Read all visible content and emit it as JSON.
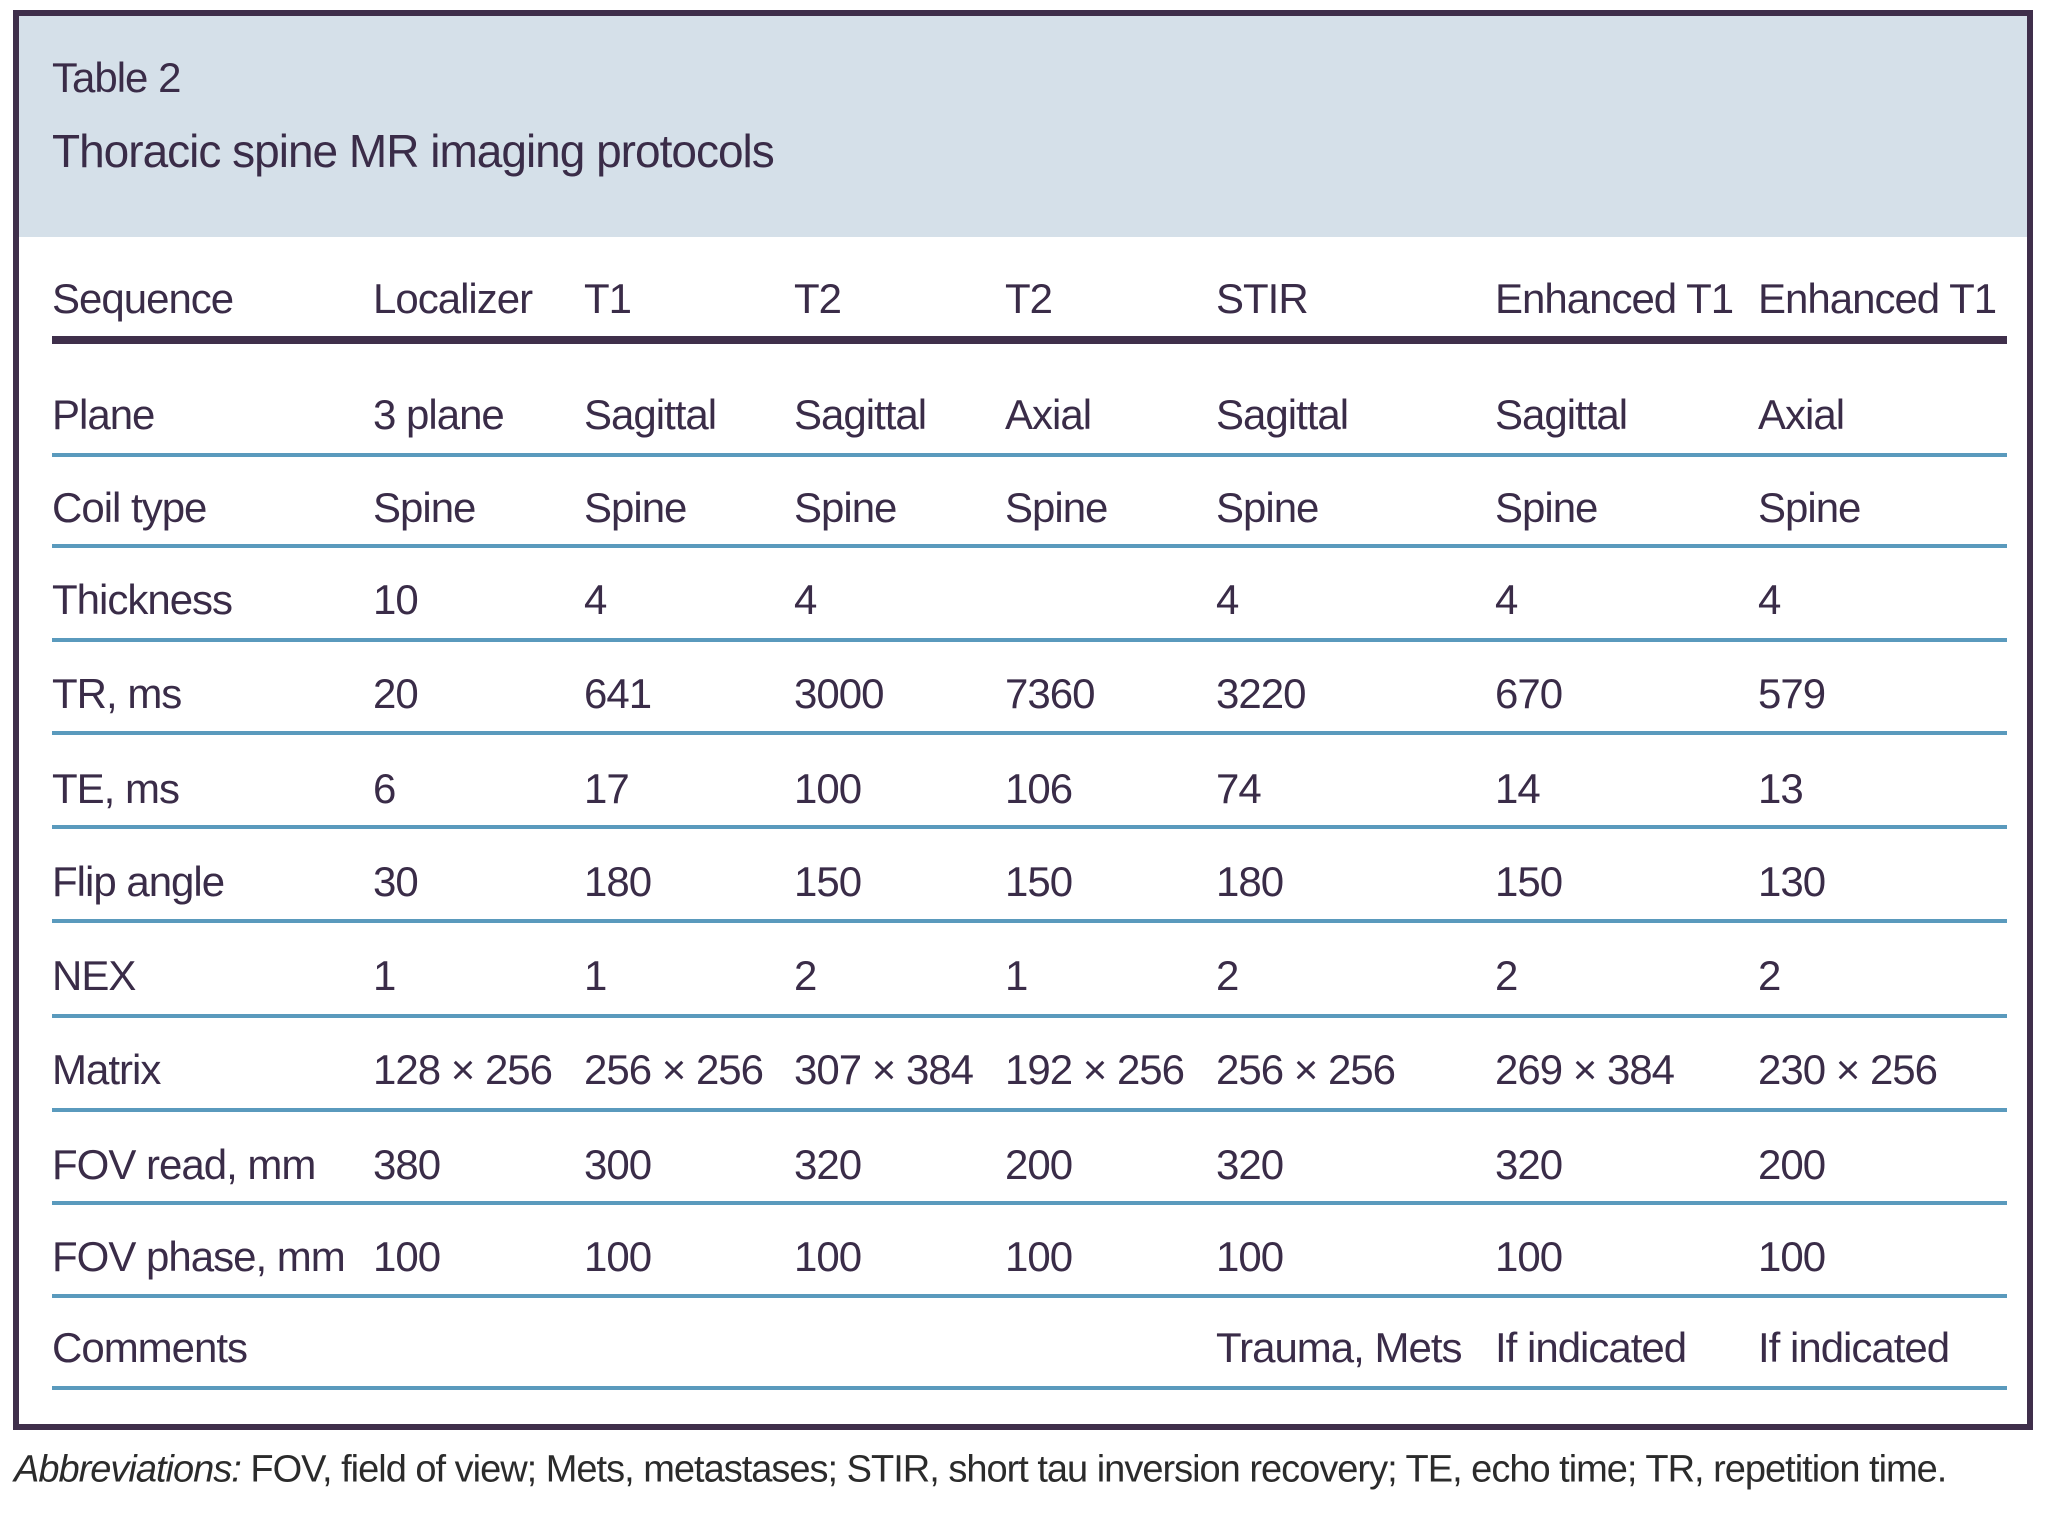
{
  "header": {
    "table_label": "Table 2",
    "title": "Thoracic spine MR imaging protocols"
  },
  "table": {
    "columns": [
      "Sequence",
      "Localizer",
      "T1",
      "T2",
      "T2",
      "STIR",
      "Enhanced T1",
      "Enhanced T1"
    ],
    "rows": [
      [
        "Plane",
        "3 plane",
        "Sagittal",
        "Sagittal",
        "Axial",
        "Sagittal",
        "Sagittal",
        "Axial"
      ],
      [
        "Coil type",
        "Spine",
        "Spine",
        "Spine",
        "Spine",
        "Spine",
        "Spine",
        "Spine"
      ],
      [
        "Thickness",
        "10",
        "4",
        "4",
        null,
        "4",
        "4",
        "4"
      ],
      [
        "TR, ms",
        "20",
        "641",
        "3000",
        "7360",
        "3220",
        "670",
        "579"
      ],
      [
        "TE, ms",
        "6",
        "17",
        "100",
        "106",
        "74",
        "14",
        "13"
      ],
      [
        "Flip angle",
        "30",
        "180",
        "150",
        "150",
        "180",
        "150",
        "130"
      ],
      [
        "NEX",
        "1",
        "1",
        "2",
        "1",
        "2",
        "2",
        "2"
      ],
      [
        "Matrix",
        "128 × 256",
        "256 × 256",
        "307 × 384",
        "192 × 256",
        "256 × 256",
        "269 × 384",
        "230 × 256"
      ],
      [
        "FOV read, mm",
        "380",
        "300",
        "320",
        "200",
        "320",
        "320",
        "200"
      ],
      [
        "FOV phase, mm",
        "100",
        "100",
        "100",
        "100",
        "100",
        "100",
        "100"
      ],
      [
        "Comments",
        null,
        null,
        null,
        null,
        "Trauma, Mets",
        "If indicated",
        "If indicated"
      ]
    ]
  },
  "footnote": {
    "label": "Abbreviations:",
    "text": "FOV, field of view; Mets, metastases; STIR, short tau inversion recovery; TE, echo time; TR, repetition time."
  }
}
